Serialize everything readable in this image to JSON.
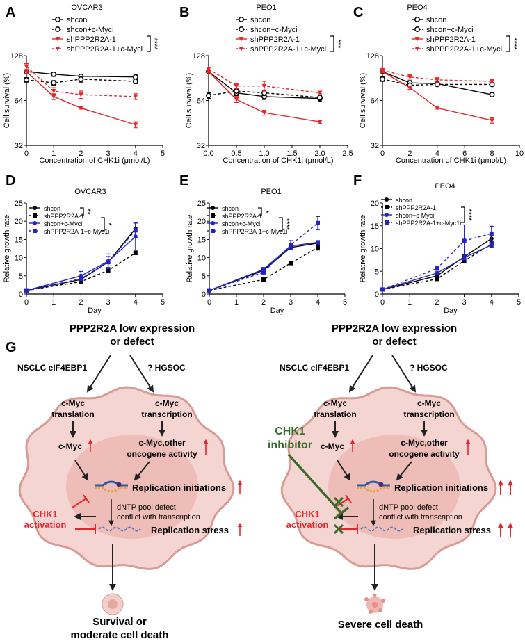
{
  "chart_data": [
    {
      "panel": "A",
      "type": "line",
      "title": "OVCAR3",
      "xlabel": "Concentration of CHK1i  (μmol/L)",
      "ylabel": "Cell survival (%)",
      "yscale": "log2",
      "ylim": [
        32,
        128
      ],
      "yticks": [
        32,
        64,
        128
      ],
      "xlim": [
        0,
        5
      ],
      "xticks": [
        0,
        1,
        2,
        3,
        4,
        5
      ],
      "x": [
        0,
        1,
        2,
        4
      ],
      "significance": "****",
      "series": [
        {
          "name": "shcon",
          "color": "#000000",
          "dashed": false,
          "marker": "circle-open",
          "values": [
            100,
            96,
            93,
            92
          ],
          "err": [
            3,
            3,
            2,
            3
          ]
        },
        {
          "name": "shcon+c-Myci",
          "color": "#000000",
          "dashed": true,
          "marker": "circle-open",
          "values": [
            88,
            84,
            89,
            86
          ],
          "err": [
            3,
            3,
            4,
            3
          ]
        },
        {
          "name": "shPPP2R2A-1",
          "color": "#e8262a",
          "dashed": false,
          "marker": "triangle-down",
          "values": [
            100,
            68,
            57,
            44
          ],
          "err": [
            3,
            3,
            1,
            2
          ]
        },
        {
          "name": "shPPP2R2A-1+c-Myci",
          "color": "#e8262a",
          "dashed": true,
          "marker": "triangle-down",
          "values": [
            108,
            74,
            70,
            68
          ],
          "err": [
            5,
            4,
            4,
            3
          ]
        }
      ]
    },
    {
      "panel": "B",
      "type": "line",
      "title": "PEO1",
      "xlabel": "Concentration of CHK1i  (μmol/L)",
      "ylabel": "Cell survival (%)",
      "yscale": "log2",
      "ylim": [
        32,
        128
      ],
      "yticks": [
        32,
        64,
        128
      ],
      "xlim": [
        0,
        2.5
      ],
      "xticks": [
        "0.0",
        "0.5",
        "1.0",
        "1.5",
        "2.0",
        "2.5"
      ],
      "x": [
        0,
        0.5,
        1,
        2
      ],
      "significance": "***",
      "series": [
        {
          "name": "shcon",
          "color": "#000000",
          "dashed": false,
          "marker": "circle-open",
          "values": [
            100,
            72,
            68,
            66
          ],
          "err": [
            2,
            3,
            3,
            3
          ]
        },
        {
          "name": "shcon+c-Myci",
          "color": "#000000",
          "dashed": true,
          "marker": "circle-open",
          "values": [
            69,
            74,
            72,
            67
          ],
          "err": [
            3,
            2,
            3,
            2
          ]
        },
        {
          "name": "shPPP2R2A-1",
          "color": "#e8262a",
          "dashed": false,
          "marker": "triangle-down",
          "values": [
            100,
            65,
            53,
            46
          ],
          "err": [
            2,
            3,
            2,
            1
          ]
        },
        {
          "name": "shPPP2R2A-1+c-Myci",
          "color": "#e8262a",
          "dashed": true,
          "marker": "triangle-down",
          "values": [
            104,
            80,
            80,
            72
          ],
          "err": [
            3,
            3,
            6,
            1
          ]
        }
      ]
    },
    {
      "panel": "C",
      "type": "line",
      "title": "PEO4",
      "xlabel": "Concentration of CHK1i  (μmol/L)",
      "ylabel": "Cell survival (%)",
      "yscale": "log2",
      "ylim": [
        32,
        128
      ],
      "yticks": [
        32,
        64,
        128
      ],
      "xlim": [
        0,
        10
      ],
      "xticks": [
        0,
        2,
        4,
        6,
        8,
        10
      ],
      "x": [
        0,
        2,
        4,
        8
      ],
      "significance": "****",
      "series": [
        {
          "name": "shcon",
          "color": "#000000",
          "dashed": false,
          "marker": "circle-open",
          "values": [
            100,
            84,
            83,
            70
          ],
          "err": [
            2,
            3,
            2,
            2
          ]
        },
        {
          "name": "shcon+c-Myci",
          "color": "#000000",
          "dashed": true,
          "marker": "circle-open",
          "values": [
            89,
            81,
            82,
            82
          ],
          "err": [
            3,
            2,
            2,
            2
          ]
        },
        {
          "name": "shPPP2R2A-1",
          "color": "#e8262a",
          "dashed": false,
          "marker": "triangle-down",
          "values": [
            100,
            78,
            57,
            47
          ],
          "err": [
            2,
            2,
            1,
            2
          ]
        },
        {
          "name": "shPPP2R2A-1+c-Myci",
          "color": "#e8262a",
          "dashed": true,
          "marker": "triangle-down",
          "values": [
            102,
            92,
            88,
            86
          ],
          "err": [
            3,
            3,
            3,
            2
          ]
        }
      ]
    },
    {
      "panel": "D",
      "type": "line",
      "title": "OVCAR3",
      "xlabel": "Day",
      "ylabel": "Relative growth rate",
      "yscale": "linear",
      "ylim": [
        0,
        25
      ],
      "yticks": [
        0,
        5,
        10,
        15,
        20,
        25
      ],
      "xlim": [
        0,
        5
      ],
      "xticks": [
        0,
        1,
        2,
        3,
        4,
        5
      ],
      "x": [
        0,
        2,
        3,
        4
      ],
      "significance": [
        "**",
        "*"
      ],
      "series": [
        {
          "name": "shcon",
          "color": "#000000",
          "dashed": false,
          "marker": "circle",
          "values": [
            1,
            4,
            8.8,
            18
          ],
          "err": [
            0.1,
            0.3,
            0.5,
            1.5
          ]
        },
        {
          "name": "shPPP2R2A-1",
          "color": "#000000",
          "dashed": true,
          "marker": "square",
          "values": [
            1,
            3.4,
            6.5,
            11.3
          ],
          "err": [
            0.1,
            0.3,
            0.3,
            0.5
          ]
        },
        {
          "name": "shcon+c-Myci",
          "color": "#2323c8",
          "dashed": false,
          "marker": "circle",
          "values": [
            1,
            5,
            9,
            15.8
          ],
          "err": [
            0.1,
            1.2,
            2,
            3.7
          ]
        },
        {
          "name": "shPPP2R2A-1+c-Myc1i",
          "color": "#2323c8",
          "dashed": true,
          "marker": "square",
          "values": [
            1,
            4.2,
            8.8,
            17.5
          ],
          "err": [
            0.1,
            0.5,
            1.5,
            2
          ]
        }
      ]
    },
    {
      "panel": "E",
      "type": "line",
      "title": "PEO1",
      "xlabel": "Day",
      "ylabel": "Relative growth rate",
      "yscale": "linear",
      "ylim": [
        0,
        25
      ],
      "yticks": [
        0,
        5,
        10,
        15,
        20,
        25
      ],
      "xlim": [
        0,
        5
      ],
      "xticks": [
        0,
        1,
        2,
        3,
        4,
        5
      ],
      "x": [
        0,
        2,
        3,
        4
      ],
      "significance": [
        "*",
        "****"
      ],
      "series": [
        {
          "name": "shcon",
          "color": "#000000",
          "dashed": false,
          "marker": "circle",
          "values": [
            1,
            6.5,
            12.8,
            14
          ],
          "err": [
            0.1,
            0.4,
            0.5,
            0.5
          ]
        },
        {
          "name": "shPPP2R2A-1",
          "color": "#000000",
          "dashed": true,
          "marker": "square",
          "values": [
            1,
            4,
            8.5,
            12.8
          ],
          "err": [
            0.1,
            0.3,
            0.5,
            0.7
          ]
        },
        {
          "name": "shcon+c-Myci",
          "color": "#2323c8",
          "dashed": false,
          "marker": "circle",
          "values": [
            1,
            6.8,
            13.2,
            14.2
          ],
          "err": [
            0.1,
            0.5,
            0.8,
            0.5
          ]
        },
        {
          "name": "shPPP2R2A-1+c-Myc1i",
          "color": "#2323c8",
          "dashed": true,
          "marker": "square",
          "values": [
            1,
            6,
            13.5,
            19.5
          ],
          "err": [
            0.1,
            0.7,
            1.2,
            1.8
          ]
        }
      ]
    },
    {
      "panel": "F",
      "type": "line",
      "title": "PEO4",
      "xlabel": "Day",
      "ylabel": "Relative growth rate",
      "yscale": "linear",
      "ylim": [
        0,
        20
      ],
      "yticks": [
        0,
        5,
        10,
        15,
        20
      ],
      "xlim": [
        0,
        5
      ],
      "xticks": [
        0,
        1,
        2,
        3,
        4,
        5
      ],
      "x": [
        0,
        2,
        3,
        4
      ],
      "significance": [
        "****"
      ],
      "series": [
        {
          "name": "shcon",
          "color": "#000000",
          "dashed": false,
          "marker": "circle",
          "values": [
            1,
            4,
            8.2,
            12.2
          ],
          "err": [
            0.1,
            0.3,
            0.5,
            0.6
          ]
        },
        {
          "name": "shPPP2R2A-1",
          "color": "#000000",
          "dashed": true,
          "marker": "square",
          "values": [
            1,
            3.3,
            7.3,
            11
          ],
          "err": [
            0.1,
            0.3,
            0.4,
            0.6
          ]
        },
        {
          "name": "shcon+c-Myci",
          "color": "#2323c8",
          "dashed": false,
          "marker": "circle",
          "values": [
            1,
            4.6,
            8,
            10.8
          ],
          "err": [
            0.1,
            0.3,
            0.5,
            0.6
          ]
        },
        {
          "name": "shPPP2R2A-1+c-Myc1i",
          "color": "#2323c8",
          "dashed": true,
          "marker": "square",
          "values": [
            1,
            5.6,
            11.7,
            13.3
          ],
          "err": [
            0.1,
            0.4,
            3.5,
            1.6
          ]
        }
      ]
    }
  ],
  "diagram": {
    "panel": "G",
    "colors": {
      "red": "#e8262a",
      "green": "#3a6b2a",
      "cell": "#f5d5d1",
      "cell_edge": "#d99a94",
      "nucleus": "#ebb4ae"
    },
    "left": {
      "top1": "PPP2R2A low expression",
      "top2": "or defect",
      "branch_left": "NSCLC  eIF4EBP1",
      "branch_right": "?  HGSOC",
      "trl1": "c-Myc",
      "trl2": "translation",
      "trs1": "c-Myc",
      "trs2": "transcription",
      "myc": "c-Myc",
      "onc1": "c-Myc,other",
      "onc2": "oncogene activity",
      "rep_init": "Replication initiations",
      "dntp1": "dNTP pool defect",
      "dntp2": "conflict with transcription",
      "chk1_1": "CHK1",
      "chk1_2": "activation",
      "rep_stress": "Replication stress",
      "out1": "Survival or",
      "out2": "moderate cell death"
    },
    "right": {
      "top1": "PPP2R2A low expression",
      "top2": "or defect",
      "branch_left": "NSCLC  eIF4EBP1",
      "branch_right": "?  HGSOC",
      "trl1": "c-Myc",
      "trl2": "translation",
      "trs1": "c-Myc",
      "trs2": "transcription",
      "myc": "c-Myc",
      "onc1": "c-Myc,other",
      "onc2": "oncogene activity",
      "rep_init": "Replication initiations",
      "dntp1": "dNTP pool defect",
      "dntp2": "conflict with transcription",
      "chk1_1": "CHK1",
      "chk1_2": "activation",
      "rep_stress": "Replication stress",
      "inhib1": "CHK1",
      "inhib2": "inhibitor",
      "out1": "Severe cell death"
    }
  }
}
